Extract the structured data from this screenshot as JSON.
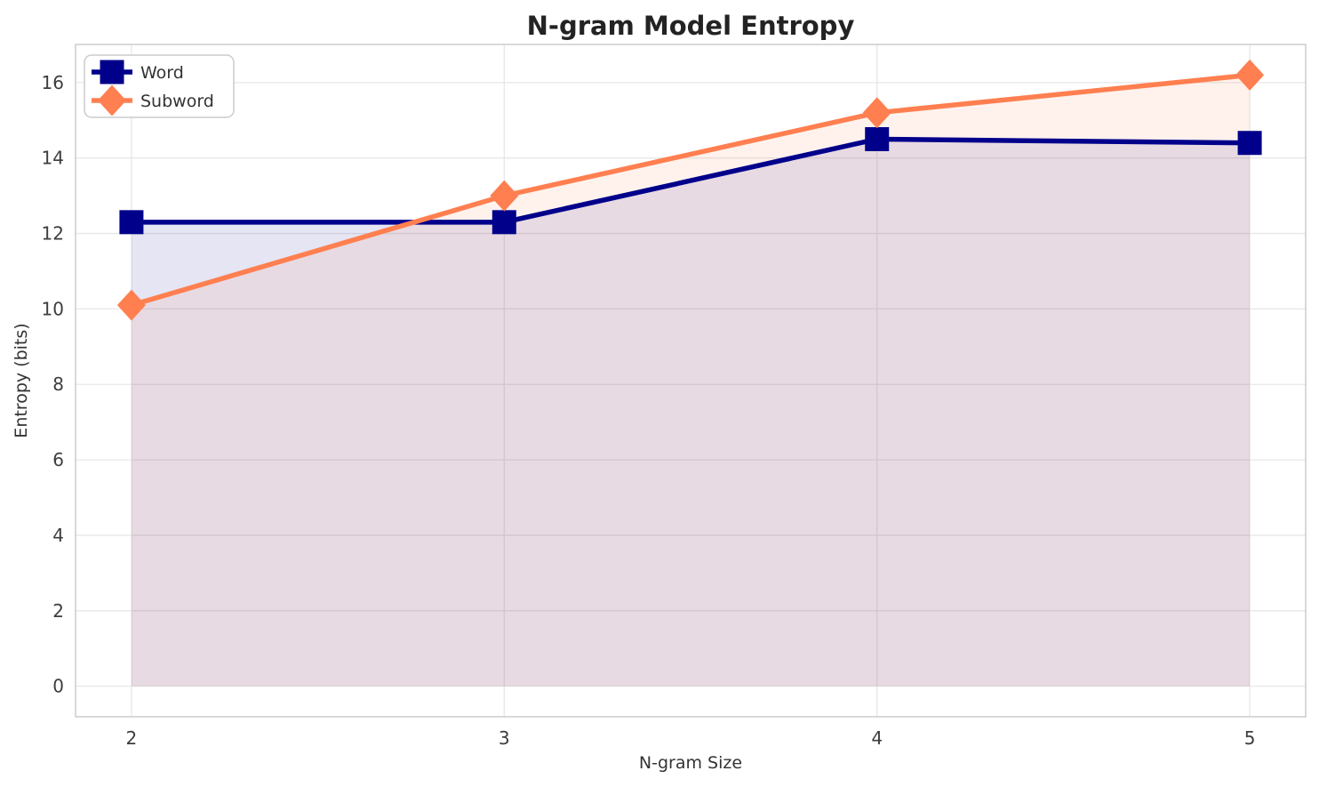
{
  "title": "N-gram Model Entropy",
  "chart_data": {
    "type": "line",
    "title": "N-gram Model Entropy",
    "xlabel": "N-gram Size",
    "ylabel": "Entropy (bits)",
    "x": [
      2,
      3,
      4,
      5
    ],
    "series": [
      {
        "name": "Word",
        "values": [
          12.3,
          12.3,
          14.5,
          14.4
        ],
        "color": "#00008B",
        "marker": "square",
        "filled_to_zero": true
      },
      {
        "name": "Subword",
        "values": [
          10.1,
          13.0,
          15.2,
          16.2
        ],
        "color": "#FF7F50",
        "marker": "diamond",
        "filled_to_zero": true
      }
    ],
    "xticks": [
      "2",
      "3",
      "4",
      "5"
    ],
    "xtick_values": [
      2,
      3,
      4,
      5
    ],
    "yticks": [
      "0",
      "2",
      "4",
      "6",
      "8",
      "10",
      "12",
      "14",
      "16"
    ],
    "ytick_values": [
      0,
      2,
      4,
      6,
      8,
      10,
      12,
      14,
      16
    ],
    "xlim": [
      1.85,
      5.15
    ],
    "ylim": [
      -0.81,
      17.01
    ],
    "grid": true,
    "legend_position": "upper left",
    "fill_opacity": 0.1,
    "line_width": 5.5
  },
  "colors": {
    "background": "#ffffff",
    "gridline": "#e7e7e7",
    "spine": "#c9c9c9",
    "word_series": "#00008B",
    "subword_series": "#FF7F50",
    "legend_border": "#cccccc",
    "legend_background": "#ffffff"
  }
}
